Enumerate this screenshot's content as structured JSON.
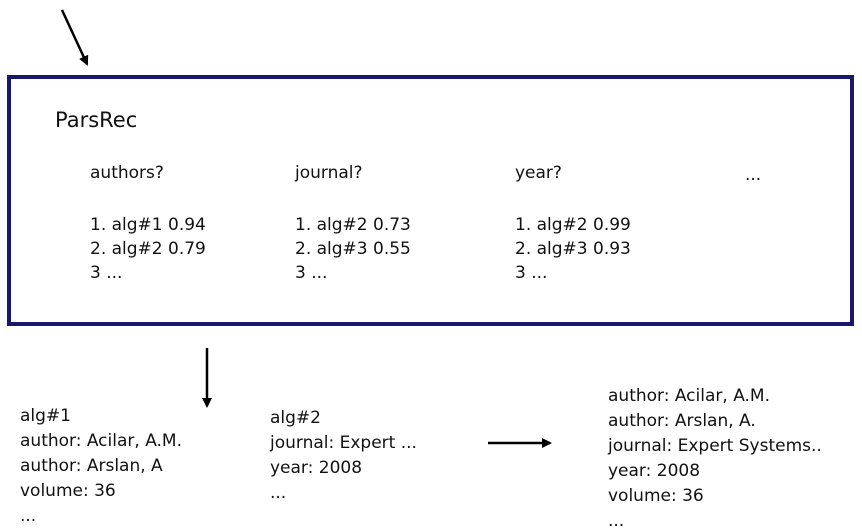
{
  "box": {
    "title": "ParsRec",
    "columns": [
      {
        "label": "authors?",
        "items": [
          "1. alg#1 0.94",
          "2. alg#2 0.79",
          "3 ..."
        ]
      },
      {
        "label": "journal?",
        "items": [
          "1. alg#2 0.73",
          "2. alg#3 0.55",
          "3 ..."
        ]
      },
      {
        "label": "year?",
        "items": [
          "1. alg#2 0.99",
          "2. alg#3 0.93",
          "3 ..."
        ]
      }
    ],
    "more": "..."
  },
  "outputs": [
    {
      "lines": [
        "alg#1",
        "author: Acilar, A.M.",
        "author: Arslan, A",
        "volume: 36",
        "..."
      ]
    },
    {
      "lines": [
        "alg#2",
        "journal: Expert ...",
        "year: 2008",
        "..."
      ]
    },
    {
      "lines": [
        "author: Acilar, A.M.",
        "author: Arslan, A.",
        "journal: Expert Systems..",
        "year: 2008",
        "volume: 36",
        "..."
      ]
    }
  ]
}
